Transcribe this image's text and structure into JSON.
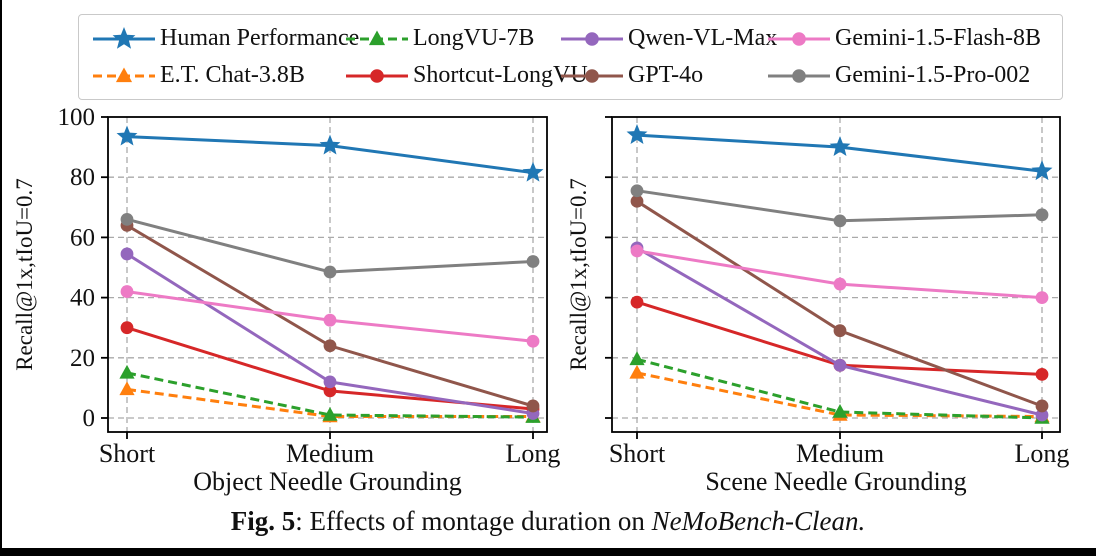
{
  "figure": {
    "caption_prefix": "Fig. 5",
    "caption_body": ": Effects of montage duration on ",
    "caption_emph": "NeMoBench-Clean."
  },
  "colors": {
    "grid": "#aaaaaa",
    "axis": "#000000",
    "legend_border": "#c9c9c9"
  },
  "series_defs": {
    "human": {
      "label": "Human Performance",
      "color": "#2077b4",
      "dash": "solid",
      "marker": "star"
    },
    "etchat": {
      "label": "E.T. Chat-3.8B",
      "color": "#ff7f0e",
      "dash": "dashed",
      "marker": "triangle"
    },
    "longvu": {
      "label": "LongVU-7B",
      "color": "#2ca02c",
      "dash": "dashed",
      "marker": "triangle"
    },
    "shortcut": {
      "label": "Shortcut-LongVU",
      "color": "#d62728",
      "dash": "solid",
      "marker": "circle"
    },
    "qwen": {
      "label": "Qwen-VL-Max",
      "color": "#9467bd",
      "dash": "solid",
      "marker": "circle"
    },
    "gpt4o": {
      "label": "GPT-4o",
      "color": "#90564b",
      "dash": "solid",
      "marker": "circle"
    },
    "flash": {
      "label": "Gemini-1.5-Flash-8B",
      "color": "#ed7ac5",
      "dash": "solid",
      "marker": "circle"
    },
    "pro": {
      "label": "Gemini-1.5-Pro-002",
      "color": "#808080",
      "dash": "solid",
      "marker": "circle"
    }
  },
  "legend": {
    "entries": [
      "human",
      "longvu",
      "qwen",
      "flash",
      "etchat",
      "shortcut",
      "gpt4o",
      "pro"
    ]
  },
  "chart_data": [
    {
      "type": "line",
      "xlabel": "Object Needle Grounding",
      "ylabel": "Recall@1x,tIoU=0.7",
      "categories": [
        "Short",
        "Medium",
        "Long"
      ],
      "ylim": [
        -5,
        100
      ],
      "yticks": [
        0,
        20,
        40,
        60,
        80,
        100
      ],
      "grid": true,
      "legend_position": "top-outside",
      "series": [
        {
          "key": "human",
          "name": "Human Performance",
          "values": [
            93.5,
            90.5,
            81.5
          ]
        },
        {
          "key": "etchat",
          "name": "E.T. Chat-3.8B",
          "values": [
            9.5,
            0.5,
            0.5
          ]
        },
        {
          "key": "longvu",
          "name": "LongVU-7B",
          "values": [
            15,
            1,
            0.3
          ]
        },
        {
          "key": "shortcut",
          "name": "Shortcut-LongVU",
          "values": [
            30,
            9,
            3
          ]
        },
        {
          "key": "qwen",
          "name": "Qwen-VL-Max",
          "values": [
            54.5,
            12,
            1.5
          ]
        },
        {
          "key": "gpt4o",
          "name": "GPT-4o",
          "values": [
            64,
            24,
            4
          ]
        },
        {
          "key": "flash",
          "name": "Gemini-1.5-Flash-8B",
          "values": [
            42,
            32.5,
            25.5
          ]
        },
        {
          "key": "pro",
          "name": "Gemini-1.5-Pro-002",
          "values": [
            66,
            48.5,
            52
          ]
        }
      ]
    },
    {
      "type": "line",
      "xlabel": "Scene Needle Grounding",
      "ylabel": "Recall@1x,tIoU=0.7",
      "categories": [
        "Short",
        "Medium",
        "Long"
      ],
      "ylim": [
        -5,
        100
      ],
      "yticks": [
        0,
        20,
        40,
        60,
        80,
        100
      ],
      "grid": true,
      "legend_position": "top-outside",
      "series": [
        {
          "key": "human",
          "name": "Human Performance",
          "values": [
            94,
            90,
            82
          ]
        },
        {
          "key": "etchat",
          "name": "E.T. Chat-3.8B",
          "values": [
            15,
            1,
            0.5
          ]
        },
        {
          "key": "longvu",
          "name": "LongVU-7B",
          "values": [
            19.5,
            2,
            0
          ]
        },
        {
          "key": "shortcut",
          "name": "Shortcut-LongVU",
          "values": [
            38.5,
            17.5,
            14.5
          ]
        },
        {
          "key": "qwen",
          "name": "Qwen-VL-Max",
          "values": [
            56.5,
            17.5,
            1
          ]
        },
        {
          "key": "gpt4o",
          "name": "GPT-4o",
          "values": [
            72,
            29,
            4
          ]
        },
        {
          "key": "flash",
          "name": "Gemini-1.5-Flash-8B",
          "values": [
            55.5,
            44.5,
            40
          ]
        },
        {
          "key": "pro",
          "name": "Gemini-1.5-Pro-002",
          "values": [
            75.5,
            65.5,
            67.5
          ]
        }
      ]
    }
  ]
}
